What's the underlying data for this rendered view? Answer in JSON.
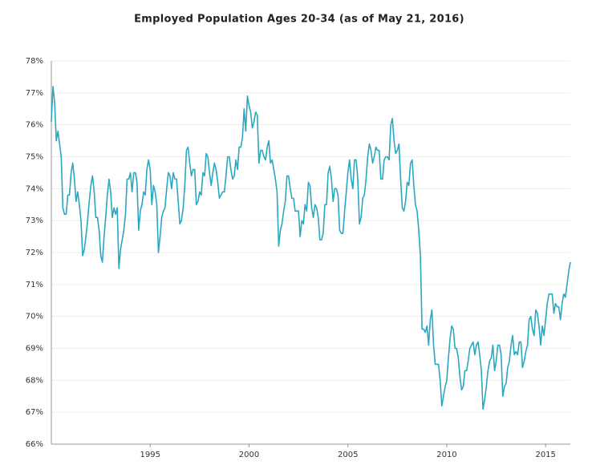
{
  "chart_data": {
    "type": "line",
    "title": "Employed Population Ages 20-34 (as of May 21, 2016)",
    "color": "#2ba8c0",
    "grid": true,
    "xlim": [
      1990,
      2016.25
    ],
    "xticks": [
      1995,
      2000,
      2005,
      2010,
      2015
    ],
    "ylim": [
      66,
      78
    ],
    "yticks": [
      {
        "value": 66,
        "label": "66%"
      },
      {
        "value": 67,
        "label": "67%"
      },
      {
        "value": 68,
        "label": "68%"
      },
      {
        "value": 69,
        "label": "69%"
      },
      {
        "value": 70,
        "label": "70%"
      },
      {
        "value": 71,
        "label": "71%"
      },
      {
        "value": 72,
        "label": "72%"
      },
      {
        "value": 73,
        "label": "73%"
      },
      {
        "value": 74,
        "label": "74%"
      },
      {
        "value": 75,
        "label": "75%"
      },
      {
        "value": 76,
        "label": "76%"
      },
      {
        "value": 77,
        "label": "77%"
      },
      {
        "value": 78,
        "label": "78%"
      }
    ],
    "x": [
      1990,
      1990.083,
      1990.167,
      1990.25,
      1990.333,
      1990.417,
      1990.5,
      1990.583,
      1990.667,
      1990.75,
      1990.833,
      1990.917,
      1991,
      1991.083,
      1991.167,
      1991.25,
      1991.333,
      1991.417,
      1991.5,
      1991.583,
      1991.667,
      1991.75,
      1991.833,
      1991.917,
      1992,
      1992.083,
      1992.167,
      1992.25,
      1992.333,
      1992.417,
      1992.5,
      1992.583,
      1992.667,
      1992.75,
      1992.833,
      1992.917,
      1993,
      1993.083,
      1993.167,
      1993.25,
      1993.333,
      1993.417,
      1993.5,
      1993.583,
      1993.667,
      1993.75,
      1993.833,
      1993.917,
      1994,
      1994.083,
      1994.167,
      1994.25,
      1994.333,
      1994.417,
      1994.5,
      1994.583,
      1994.667,
      1994.75,
      1994.833,
      1994.917,
      1995,
      1995.083,
      1995.167,
      1995.25,
      1995.333,
      1995.417,
      1995.5,
      1995.583,
      1995.667,
      1995.75,
      1995.833,
      1995.917,
      1996,
      1996.083,
      1996.167,
      1996.25,
      1996.333,
      1996.417,
      1996.5,
      1996.583,
      1996.667,
      1996.75,
      1996.833,
      1996.917,
      1997,
      1997.083,
      1997.167,
      1997.25,
      1997.333,
      1997.417,
      1997.5,
      1997.583,
      1997.667,
      1997.75,
      1997.833,
      1997.917,
      1998,
      1998.083,
      1998.167,
      1998.25,
      1998.333,
      1998.417,
      1998.5,
      1998.583,
      1998.667,
      1998.75,
      1998.833,
      1998.917,
      1999,
      1999.083,
      1999.167,
      1999.25,
      1999.333,
      1999.417,
      1999.5,
      1999.583,
      1999.667,
      1999.75,
      1999.833,
      1999.917,
      2000,
      2000.083,
      2000.167,
      2000.25,
      2000.333,
      2000.417,
      2000.5,
      2000.583,
      2000.667,
      2000.75,
      2000.833,
      2000.917,
      2001,
      2001.083,
      2001.167,
      2001.25,
      2001.333,
      2001.417,
      2001.5,
      2001.583,
      2001.667,
      2001.75,
      2001.833,
      2001.917,
      2002,
      2002.083,
      2002.167,
      2002.25,
      2002.333,
      2002.417,
      2002.5,
      2002.583,
      2002.667,
      2002.75,
      2002.833,
      2002.917,
      2003,
      2003.083,
      2003.167,
      2003.25,
      2003.333,
      2003.417,
      2003.5,
      2003.583,
      2003.667,
      2003.75,
      2003.833,
      2003.917,
      2004,
      2004.083,
      2004.167,
      2004.25,
      2004.333,
      2004.417,
      2004.5,
      2004.583,
      2004.667,
      2004.75,
      2004.833,
      2004.917,
      2005,
      2005.083,
      2005.167,
      2005.25,
      2005.333,
      2005.417,
      2005.5,
      2005.583,
      2005.667,
      2005.75,
      2005.833,
      2005.917,
      2006,
      2006.083,
      2006.167,
      2006.25,
      2006.333,
      2006.417,
      2006.5,
      2006.583,
      2006.667,
      2006.75,
      2006.833,
      2006.917,
      2007,
      2007.083,
      2007.167,
      2007.25,
      2007.333,
      2007.417,
      2007.5,
      2007.583,
      2007.667,
      2007.75,
      2007.833,
      2007.917,
      2008,
      2008.083,
      2008.167,
      2008.25,
      2008.333,
      2008.417,
      2008.5,
      2008.583,
      2008.667,
      2008.75,
      2008.833,
      2008.917,
      2009,
      2009.083,
      2009.167,
      2009.25,
      2009.333,
      2009.417,
      2009.5,
      2009.583,
      2009.667,
      2009.75,
      2009.833,
      2009.917,
      2010,
      2010.083,
      2010.167,
      2010.25,
      2010.333,
      2010.417,
      2010.5,
      2010.583,
      2010.667,
      2010.75,
      2010.833,
      2010.917,
      2011,
      2011.083,
      2011.167,
      2011.25,
      2011.333,
      2011.417,
      2011.5,
      2011.583,
      2011.667,
      2011.75,
      2011.833,
      2011.917,
      2012,
      2012.083,
      2012.167,
      2012.25,
      2012.333,
      2012.417,
      2012.5,
      2012.583,
      2012.667,
      2012.75,
      2012.833,
      2012.917,
      2013,
      2013.083,
      2013.167,
      2013.25,
      2013.333,
      2013.417,
      2013.5,
      2013.583,
      2013.667,
      2013.75,
      2013.833,
      2013.917,
      2014,
      2014.083,
      2014.167,
      2014.25,
      2014.333,
      2014.417,
      2014.5,
      2014.583,
      2014.667,
      2014.75,
      2014.833,
      2014.917,
      2015,
      2015.083,
      2015.167,
      2015.25,
      2015.333,
      2015.417,
      2015.5,
      2015.583,
      2015.667,
      2015.75,
      2015.833,
      2015.917,
      2016,
      2016.083,
      2016.167,
      2016.25
    ],
    "values": [
      76.1,
      77.2,
      76.7,
      75.5,
      75.8,
      75.4,
      75.0,
      73.4,
      73.2,
      73.2,
      73.8,
      73.8,
      74.5,
      74.8,
      74.3,
      73.6,
      73.9,
      73.5,
      73.0,
      71.9,
      72.1,
      72.5,
      73.0,
      73.6,
      74.1,
      74.4,
      73.9,
      73.1,
      73.1,
      72.7,
      71.9,
      71.7,
      72.5,
      73.1,
      73.8,
      74.3,
      73.9,
      73.1,
      73.4,
      73.2,
      73.4,
      71.5,
      72.1,
      72.4,
      72.7,
      73.2,
      74.3,
      74.3,
      74.5,
      73.9,
      74.5,
      74.5,
      74.2,
      72.7,
      73.3,
      73.5,
      73.9,
      73.8,
      74.6,
      74.9,
      74.6,
      73.5,
      74.1,
      73.9,
      73.5,
      72.0,
      72.5,
      73.1,
      73.3,
      73.4,
      74.0,
      74.5,
      74.4,
      74.0,
      74.5,
      74.3,
      74.3,
      73.6,
      72.9,
      73.0,
      73.4,
      74.1,
      75.2,
      75.3,
      74.8,
      74.4,
      74.6,
      74.6,
      73.5,
      73.6,
      73.9,
      73.8,
      74.5,
      74.4,
      75.1,
      75.0,
      74.5,
      74.1,
      74.5,
      74.8,
      74.6,
      74.2,
      73.7,
      73.8,
      73.9,
      73.9,
      74.4,
      75.0,
      75.0,
      74.6,
      74.3,
      74.4,
      74.9,
      74.6,
      75.3,
      75.3,
      75.6,
      76.5,
      75.8,
      76.9,
      76.6,
      76.4,
      75.9,
      76.1,
      76.4,
      76.3,
      74.8,
      75.2,
      75.2,
      75.0,
      74.9,
      75.3,
      75.5,
      74.8,
      74.9,
      74.6,
      74.3,
      73.9,
      72.2,
      72.7,
      72.9,
      73.3,
      73.6,
      74.4,
      74.4,
      74.0,
      73.7,
      73.7,
      73.3,
      73.3,
      73.3,
      72.5,
      73.0,
      72.9,
      73.5,
      73.3,
      74.2,
      74.1,
      73.4,
      73.1,
      73.5,
      73.4,
      73.1,
      72.4,
      72.4,
      72.6,
      73.5,
      73.5,
      74.5,
      74.7,
      74.3,
      73.6,
      74.0,
      74.0,
      73.8,
      72.7,
      72.6,
      72.6,
      73.3,
      73.9,
      74.5,
      74.9,
      74.3,
      74.0,
      74.9,
      74.9,
      74.3,
      72.9,
      73.1,
      73.7,
      73.8,
      74.3,
      75.0,
      75.4,
      75.2,
      74.8,
      75.0,
      75.3,
      75.2,
      75.2,
      74.3,
      74.3,
      74.9,
      75.0,
      75.0,
      74.9,
      76.0,
      76.2,
      75.5,
      75.1,
      75.2,
      75.4,
      74.3,
      73.4,
      73.3,
      73.6,
      74.2,
      74.1,
      74.8,
      74.9,
      74.1,
      73.5,
      73.3,
      72.7,
      71.9,
      69.6,
      69.6,
      69.5,
      69.7,
      69.1,
      69.9,
      70.2,
      69.1,
      68.5,
      68.5,
      68.5,
      68.0,
      67.2,
      67.5,
      67.8,
      68.0,
      68.7,
      69.3,
      69.7,
      69.6,
      69.0,
      69.0,
      68.7,
      68.1,
      67.7,
      67.8,
      68.3,
      68.3,
      68.6,
      69.0,
      69.1,
      69.2,
      68.8,
      69.1,
      69.2,
      68.8,
      68.3,
      67.1,
      67.4,
      67.8,
      68.3,
      68.6,
      68.7,
      69.1,
      68.3,
      68.6,
      69.1,
      69.1,
      68.8,
      67.5,
      67.8,
      67.9,
      68.4,
      68.6,
      69.1,
      69.4,
      68.8,
      68.9,
      68.8,
      69.2,
      69.2,
      68.4,
      68.6,
      68.9,
      69.1,
      69.9,
      70.0,
      69.6,
      69.4,
      70.2,
      70.1,
      69.7,
      69.1,
      69.7,
      69.4,
      69.9,
      70.4,
      70.7,
      70.7,
      70.7,
      70.1,
      70.4,
      70.3,
      70.3,
      69.9,
      70.4,
      70.7,
      70.6,
      71.0,
      71.4,
      71.7
    ]
  }
}
